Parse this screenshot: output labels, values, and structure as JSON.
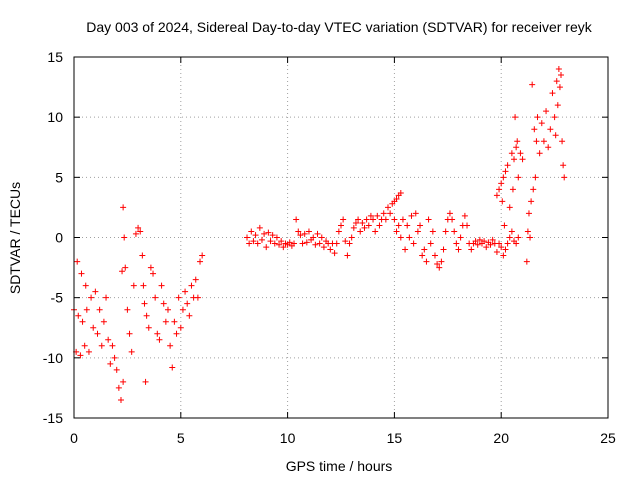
{
  "chart_data": {
    "type": "scatter",
    "title": "Day 003 of 2024, Sidereal Day-to-day VTEC variation (SDTVAR) for receiver reyk",
    "xlabel": "GPS time / hours",
    "ylabel": "SDTVAR / TECUs",
    "xlim": [
      0,
      25
    ],
    "ylim": [
      -15,
      15
    ],
    "xticks": [
      0,
      5,
      10,
      15,
      20,
      25
    ],
    "yticks": [
      -15,
      -10,
      -5,
      0,
      5,
      10,
      15
    ],
    "xtick_labels": [
      "0",
      "5",
      "10",
      "15",
      "20",
      "25"
    ],
    "ytick_labels": [
      "-15",
      "-10",
      "-5",
      "0",
      "5",
      "10",
      "15"
    ],
    "grid": true,
    "marker": "+",
    "color": "#ff0000",
    "series": [
      {
        "name": "SDTVAR",
        "segments": [
          [
            [
              0.0,
              -6.0
            ],
            [
              0.1,
              -9.5
            ],
            [
              0.15,
              -2.0
            ],
            [
              0.2,
              -6.5
            ],
            [
              0.3,
              -9.8
            ],
            [
              0.35,
              -3.0
            ],
            [
              0.4,
              -7.0
            ],
            [
              0.5,
              -9.0
            ],
            [
              0.55,
              -4.0
            ],
            [
              0.6,
              -6.0
            ],
            [
              0.7,
              -9.5
            ],
            [
              0.8,
              -5.0
            ],
            [
              0.9,
              -7.5
            ],
            [
              1.0,
              -4.5
            ],
            [
              1.1,
              -8.0
            ],
            [
              1.2,
              -6.0
            ],
            [
              1.3,
              -9.0
            ],
            [
              1.4,
              -7.0
            ],
            [
              1.5,
              -5.0
            ],
            [
              1.6,
              -8.5
            ],
            [
              1.7,
              -10.5
            ],
            [
              1.8,
              -9.0
            ],
            [
              1.9,
              -10.0
            ],
            [
              2.0,
              -11.0
            ],
            [
              2.1,
              -12.5
            ],
            [
              2.2,
              -13.5
            ],
            [
              2.3,
              -12.0
            ],
            [
              2.25,
              -2.8
            ],
            [
              2.3,
              2.5
            ],
            [
              2.35,
              0.0
            ],
            [
              2.4,
              -2.5
            ],
            [
              2.5,
              -6.0
            ],
            [
              2.6,
              -8.0
            ],
            [
              2.7,
              -9.5
            ],
            [
              2.8,
              -4.0
            ],
            [
              2.9,
              0.3
            ],
            [
              3.0,
              0.8
            ],
            [
              3.1,
              0.5
            ],
            [
              3.2,
              -1.5
            ],
            [
              3.25,
              -4.0
            ],
            [
              3.3,
              -5.5
            ],
            [
              3.35,
              -12.0
            ],
            [
              3.4,
              -6.5
            ],
            [
              3.5,
              -7.5
            ],
            [
              3.6,
              -2.5
            ],
            [
              3.7,
              -3.0
            ],
            [
              3.8,
              -5.0
            ],
            [
              3.9,
              -8.0
            ],
            [
              4.0,
              -8.5
            ],
            [
              4.1,
              -4.0
            ],
            [
              4.2,
              -5.5
            ],
            [
              4.3,
              -7.0
            ],
            [
              4.4,
              -6.0
            ],
            [
              4.5,
              -9.0
            ],
            [
              4.6,
              -10.8
            ],
            [
              4.7,
              -7.0
            ],
            [
              4.8,
              -8.0
            ],
            [
              4.9,
              -5.0
            ],
            [
              5.0,
              -7.5
            ],
            [
              5.1,
              -6.0
            ],
            [
              5.2,
              -4.5
            ],
            [
              5.3,
              -5.5
            ],
            [
              5.4,
              -6.5
            ],
            [
              5.5,
              -4.0
            ],
            [
              5.6,
              -5.0
            ],
            [
              5.7,
              -3.5
            ],
            [
              5.8,
              -5.0
            ],
            [
              5.9,
              -2.0
            ],
            [
              6.0,
              -1.5
            ]
          ],
          [
            [
              8.1,
              0.0
            ],
            [
              8.2,
              -0.5
            ],
            [
              8.3,
              0.5
            ],
            [
              8.4,
              -0.3
            ],
            [
              8.5,
              0.2
            ],
            [
              8.6,
              -0.5
            ],
            [
              8.7,
              0.8
            ],
            [
              8.8,
              -0.2
            ],
            [
              8.9,
              0.3
            ],
            [
              9.0,
              -0.8
            ],
            [
              9.1,
              0.4
            ],
            [
              9.2,
              -0.3
            ],
            [
              9.3,
              0.2
            ],
            [
              9.4,
              -0.5
            ],
            [
              9.5,
              0.0
            ],
            [
              9.6,
              -0.6
            ],
            [
              9.7,
              -0.3
            ],
            [
              9.8,
              -0.8
            ],
            [
              9.9,
              -0.5
            ],
            [
              10.0,
              -0.6
            ],
            [
              10.1,
              -0.4
            ],
            [
              10.2,
              -0.7
            ],
            [
              10.3,
              -0.5
            ],
            [
              10.4,
              1.5
            ],
            [
              10.5,
              0.5
            ],
            [
              10.6,
              0.2
            ],
            [
              10.7,
              -0.5
            ],
            [
              10.8,
              0.3
            ],
            [
              10.9,
              -0.4
            ],
            [
              11.0,
              0.5
            ],
            [
              11.1,
              -0.2
            ],
            [
              11.2,
              0.0
            ],
            [
              11.3,
              -0.6
            ],
            [
              11.4,
              0.3
            ],
            [
              11.5,
              -0.5
            ],
            [
              11.6,
              0.0
            ],
            [
              11.7,
              -0.8
            ],
            [
              11.8,
              -0.3
            ],
            [
              11.9,
              -0.5
            ],
            [
              12.0,
              -1.0
            ],
            [
              12.1,
              -0.5
            ],
            [
              12.2,
              -1.3
            ],
            [
              12.3,
              -0.5
            ],
            [
              12.4,
              0.5
            ],
            [
              12.5,
              1.0
            ],
            [
              12.6,
              1.5
            ],
            [
              12.7,
              -0.3
            ],
            [
              12.8,
              -1.5
            ],
            [
              12.9,
              -0.5
            ],
            [
              13.0,
              0.0
            ],
            [
              13.1,
              0.8
            ],
            [
              13.2,
              1.2
            ],
            [
              13.3,
              1.5
            ],
            [
              13.4,
              0.5
            ],
            [
              13.5,
              1.2
            ],
            [
              13.6,
              0.8
            ],
            [
              13.7,
              1.5
            ],
            [
              13.8,
              1.0
            ],
            [
              13.9,
              1.8
            ],
            [
              14.0,
              1.5
            ],
            [
              14.1,
              0.5
            ],
            [
              14.2,
              1.8
            ],
            [
              14.3,
              1.0
            ],
            [
              14.4,
              1.5
            ],
            [
              14.5,
              2.0
            ],
            [
              14.6,
              1.5
            ],
            [
              14.7,
              2.5
            ],
            [
              14.8,
              2.0
            ],
            [
              14.9,
              2.8
            ],
            [
              15.0,
              3.0
            ],
            [
              15.1,
              3.2
            ],
            [
              15.2,
              3.5
            ],
            [
              15.3,
              3.7
            ],
            [
              15.0,
              1.5
            ],
            [
              15.1,
              0.5
            ],
            [
              15.2,
              1.0
            ],
            [
              15.3,
              0.0
            ],
            [
              15.4,
              1.5
            ],
            [
              15.5,
              -1.0
            ],
            [
              15.6,
              1.0
            ],
            [
              15.7,
              0.0
            ],
            [
              15.8,
              1.8
            ],
            [
              15.9,
              -0.5
            ],
            [
              16.0,
              2.0
            ],
            [
              16.1,
              0.5
            ],
            [
              16.2,
              1.0
            ],
            [
              16.3,
              -1.5
            ],
            [
              16.4,
              -1.0
            ],
            [
              16.5,
              -2.0
            ],
            [
              16.6,
              1.5
            ],
            [
              16.7,
              -0.5
            ],
            [
              16.8,
              0.5
            ],
            [
              16.9,
              -1.5
            ],
            [
              17.0,
              -2.2
            ],
            [
              17.1,
              -2.5
            ],
            [
              17.2,
              -2.0
            ],
            [
              17.3,
              -1.0
            ],
            [
              17.4,
              0.5
            ],
            [
              17.5,
              1.5
            ],
            [
              17.6,
              2.0
            ],
            [
              17.7,
              1.5
            ],
            [
              17.8,
              0.5
            ],
            [
              17.9,
              -0.5
            ],
            [
              18.0,
              -1.0
            ],
            [
              18.1,
              0.0
            ],
            [
              18.2,
              1.0
            ],
            [
              18.3,
              1.8
            ],
            [
              18.4,
              1.0
            ],
            [
              18.5,
              -0.5
            ],
            [
              18.6,
              -1.0
            ],
            [
              18.7,
              -0.5
            ],
            [
              18.8,
              -0.3
            ],
            [
              18.9,
              -0.6
            ],
            [
              19.0,
              -0.2
            ],
            [
              19.1,
              -0.5
            ],
            [
              19.2,
              -0.3
            ],
            [
              19.3,
              -0.8
            ],
            [
              19.4,
              -0.4
            ],
            [
              19.5,
              -0.6
            ],
            [
              19.6,
              -0.2
            ],
            [
              19.7,
              -0.5
            ],
            [
              19.8,
              -1.2
            ],
            [
              19.9,
              -0.5
            ],
            [
              20.0,
              -0.8
            ],
            [
              20.1,
              -1.5
            ],
            [
              20.2,
              -1.0
            ],
            [
              20.3,
              -0.5
            ],
            [
              20.4,
              0.0
            ],
            [
              20.5,
              0.5
            ],
            [
              20.6,
              -0.3
            ],
            [
              20.7,
              -0.5
            ],
            [
              20.8,
              0.0
            ]
          ],
          [
            [
              19.8,
              3.5
            ],
            [
              19.9,
              4.0
            ],
            [
              20.0,
              4.5
            ],
            [
              20.05,
              3.0
            ],
            [
              20.1,
              5.0
            ],
            [
              20.15,
              1.0
            ],
            [
              20.2,
              5.5
            ],
            [
              20.3,
              6.0
            ],
            [
              20.4,
              2.5
            ],
            [
              20.5,
              7.0
            ],
            [
              20.55,
              4.0
            ],
            [
              20.6,
              6.5
            ],
            [
              20.65,
              10.0
            ],
            [
              20.7,
              7.5
            ],
            [
              20.75,
              8.0
            ],
            [
              20.8,
              5.0
            ],
            [
              20.9,
              7.0
            ],
            [
              21.0,
              6.5
            ],
            [
              21.2,
              -2.0
            ],
            [
              21.25,
              0.5
            ],
            [
              21.3,
              2.0
            ],
            [
              21.35,
              0.0
            ],
            [
              21.4,
              3.0
            ],
            [
              21.45,
              12.7
            ],
            [
              21.5,
              4.0
            ],
            [
              21.55,
              9.0
            ],
            [
              21.6,
              5.0
            ],
            [
              21.65,
              8.0
            ],
            [
              21.7,
              10.0
            ],
            [
              21.8,
              7.0
            ],
            [
              21.9,
              9.5
            ],
            [
              22.0,
              8.0
            ],
            [
              22.1,
              10.5
            ],
            [
              22.2,
              7.5
            ],
            [
              22.3,
              9.0
            ],
            [
              22.4,
              12.0
            ],
            [
              22.5,
              10.0
            ],
            [
              22.55,
              8.5
            ],
            [
              22.6,
              13.0
            ],
            [
              22.65,
              11.0
            ],
            [
              22.7,
              14.0
            ],
            [
              22.75,
              12.5
            ],
            [
              22.8,
              13.5
            ],
            [
              22.85,
              8.0
            ],
            [
              22.9,
              6.0
            ],
            [
              22.95,
              5.0
            ]
          ]
        ]
      }
    ]
  }
}
